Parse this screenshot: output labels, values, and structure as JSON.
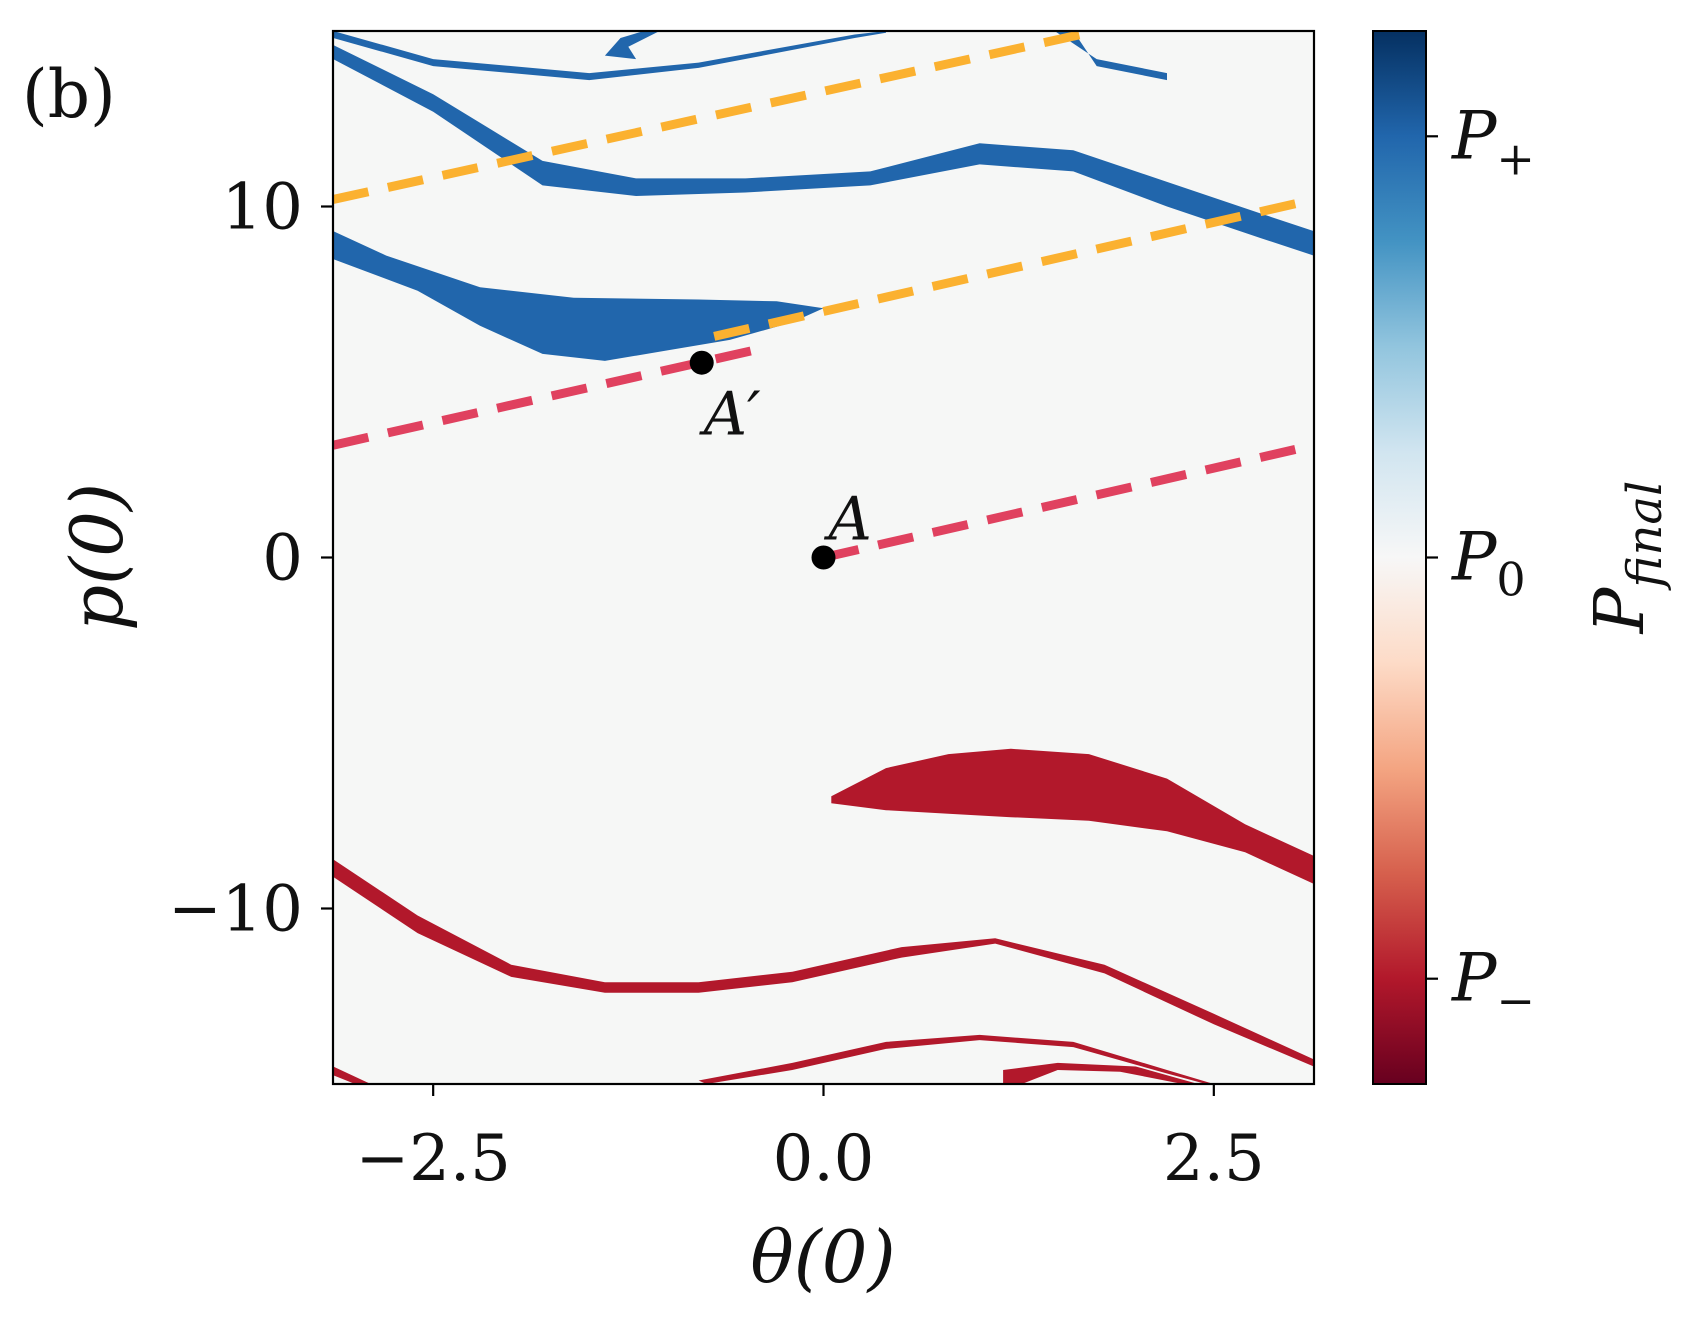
{
  "panel_label": "(b)",
  "chart_data": {
    "type": "heatmap",
    "xlabel": "θ(0)",
    "ylabel": "p(0)",
    "xlim": [
      -3.1416,
      3.1416
    ],
    "ylim": [
      -15,
      15
    ],
    "x_ticks": [
      {
        "value": -2.5,
        "label": "−2.5"
      },
      {
        "value": 0.0,
        "label": "0.0"
      },
      {
        "value": 2.5,
        "label": "2.5"
      }
    ],
    "y_ticks": [
      {
        "value": 10,
        "label": "10"
      },
      {
        "value": 0,
        "label": "0"
      },
      {
        "value": -10,
        "label": "−10"
      }
    ],
    "colorbar": {
      "title": "P_final",
      "colormap": "RdBu",
      "ticks": [
        {
          "label": "P+",
          "base": "P",
          "sub": "+",
          "level": 0.9
        },
        {
          "label": "P0",
          "base": "P",
          "sub": "0",
          "level": 0.5
        },
        {
          "label": "P−",
          "base": "P",
          "sub": "−",
          "level": 0.1
        }
      ]
    },
    "regions": [
      {
        "name": "blue-upper-thin-band",
        "class": "P+",
        "color": "#2166ac",
        "top": [
          [
            -3.14,
            14.6
          ],
          [
            -2.5,
            13.2
          ],
          [
            -1.8,
            11.3
          ],
          [
            -1.2,
            10.8
          ],
          [
            -0.5,
            10.8
          ],
          [
            0.3,
            11.0
          ],
          [
            1.0,
            11.8
          ],
          [
            1.6,
            11.6
          ],
          [
            2.2,
            10.7
          ],
          [
            2.8,
            9.8
          ],
          [
            3.14,
            9.3
          ]
        ],
        "bottom": [
          [
            3.14,
            8.6
          ],
          [
            2.8,
            9.1
          ],
          [
            2.2,
            10.0
          ],
          [
            1.6,
            11.0
          ],
          [
            1.0,
            11.2
          ],
          [
            0.3,
            10.6
          ],
          [
            -0.5,
            10.4
          ],
          [
            -1.2,
            10.3
          ],
          [
            -1.8,
            10.6
          ],
          [
            -2.5,
            12.7
          ],
          [
            -3.14,
            14.2
          ]
        ]
      },
      {
        "name": "blue-upper-thin-band-2",
        "class": "P+",
        "color": "#2166ac",
        "top": [
          [
            -3.14,
            15.0
          ],
          [
            -2.5,
            14.2
          ],
          [
            -1.5,
            13.8
          ],
          [
            -0.8,
            14.1
          ],
          [
            0.2,
            14.9
          ],
          [
            0.4,
            15.0
          ]
        ],
        "bottom": [
          [
            0.4,
            14.95
          ],
          [
            0.2,
            14.8
          ],
          [
            -0.8,
            13.95
          ],
          [
            -1.5,
            13.6
          ],
          [
            -2.5,
            14.0
          ],
          [
            -3.14,
            14.8
          ]
        ]
      },
      {
        "name": "blue-upper-corner-band",
        "class": "P+",
        "color": "#2166ac",
        "top": [
          [
            1.48,
            15.0
          ],
          [
            1.75,
            14.2
          ],
          [
            2.2,
            13.8
          ]
        ],
        "bottom": [
          [
            2.2,
            13.6
          ],
          [
            1.75,
            14.0
          ],
          [
            1.6,
            15.0
          ]
        ]
      },
      {
        "name": "blue-upper-corner-loop",
        "class": "P+",
        "color": "#2166ac",
        "top": [
          [
            -1.15,
            15.0
          ],
          [
            -1.3,
            14.8
          ],
          [
            -1.4,
            14.3
          ],
          [
            -1.2,
            14.2
          ]
        ],
        "bottom": [
          [
            -1.2,
            14.2
          ],
          [
            -1.25,
            14.55
          ],
          [
            -1.05,
            15.0
          ]
        ]
      },
      {
        "name": "blue-tongue",
        "class": "P+",
        "color": "#2166ac",
        "top": [
          [
            -3.14,
            9.3
          ],
          [
            -2.8,
            8.6
          ],
          [
            -2.2,
            7.7
          ],
          [
            -1.6,
            7.4
          ],
          [
            -0.8,
            7.35
          ],
          [
            -0.3,
            7.3
          ],
          [
            0.0,
            7.1
          ],
          [
            -0.2,
            6.7
          ]
        ],
        "bottom": [
          [
            -0.2,
            6.7
          ],
          [
            -0.6,
            6.2
          ],
          [
            -1.0,
            5.9
          ],
          [
            -1.4,
            5.6
          ],
          [
            -1.8,
            5.8
          ],
          [
            -2.2,
            6.6
          ],
          [
            -2.6,
            7.6
          ],
          [
            -3.14,
            8.5
          ]
        ]
      },
      {
        "name": "red-tongue",
        "class": "P−",
        "color": "#b2182b",
        "top": [
          [
            0.05,
            -6.8
          ],
          [
            0.4,
            -6.0
          ],
          [
            0.8,
            -5.6
          ],
          [
            1.2,
            -5.45
          ],
          [
            1.7,
            -5.6
          ],
          [
            2.2,
            -6.3
          ],
          [
            2.7,
            -7.6
          ],
          [
            3.14,
            -8.5
          ]
        ],
        "bottom": [
          [
            3.14,
            -9.3
          ],
          [
            2.7,
            -8.4
          ],
          [
            2.2,
            -7.8
          ],
          [
            1.7,
            -7.5
          ],
          [
            1.2,
            -7.4
          ],
          [
            0.8,
            -7.3
          ],
          [
            0.4,
            -7.2
          ],
          [
            0.05,
            -7.0
          ]
        ]
      },
      {
        "name": "red-lower-band",
        "class": "P−",
        "color": "#b2182b",
        "top": [
          [
            -3.14,
            -8.6
          ],
          [
            -2.6,
            -10.2
          ],
          [
            -2.0,
            -11.6
          ],
          [
            -1.4,
            -12.1
          ],
          [
            -0.8,
            -12.1
          ],
          [
            -0.2,
            -11.8
          ],
          [
            0.5,
            -11.1
          ],
          [
            1.1,
            -10.85
          ],
          [
            1.8,
            -11.6
          ],
          [
            2.5,
            -13.0
          ],
          [
            3.14,
            -14.3
          ]
        ],
        "bottom": [
          [
            3.14,
            -14.5
          ],
          [
            2.5,
            -13.3
          ],
          [
            1.8,
            -11.85
          ],
          [
            1.1,
            -11.0
          ],
          [
            0.5,
            -11.4
          ],
          [
            -0.2,
            -12.1
          ],
          [
            -0.8,
            -12.4
          ],
          [
            -1.4,
            -12.4
          ],
          [
            -2.0,
            -11.95
          ],
          [
            -2.6,
            -10.7
          ],
          [
            -3.14,
            -9.1
          ]
        ]
      },
      {
        "name": "red-lower-thin-band",
        "class": "P−",
        "color": "#b2182b",
        "top": [
          [
            -0.8,
            -14.9
          ],
          [
            -0.2,
            -14.4
          ],
          [
            0.4,
            -13.8
          ],
          [
            1.0,
            -13.6
          ],
          [
            1.6,
            -13.8
          ],
          [
            2.2,
            -14.6
          ],
          [
            2.5,
            -15.0
          ]
        ],
        "bottom": [
          [
            2.45,
            -15.0
          ],
          [
            2.2,
            -14.7
          ],
          [
            1.6,
            -13.95
          ],
          [
            1.0,
            -13.75
          ],
          [
            0.4,
            -14.0
          ],
          [
            -0.2,
            -14.6
          ],
          [
            -0.75,
            -15.0
          ]
        ]
      },
      {
        "name": "red-lower-loop",
        "class": "P−",
        "color": "#b2182b",
        "top": [
          [
            1.15,
            -15.0
          ],
          [
            1.15,
            -14.6
          ],
          [
            1.5,
            -14.4
          ],
          [
            2.0,
            -14.5
          ],
          [
            2.4,
            -15.0
          ]
        ],
        "bottom": [
          [
            2.3,
            -15.0
          ],
          [
            1.9,
            -14.65
          ],
          [
            1.5,
            -14.6
          ],
          [
            1.27,
            -15.0
          ]
        ]
      },
      {
        "name": "red-lower-corner",
        "class": "P−",
        "color": "#b2182b",
        "top": [
          [
            -3.14,
            -14.5
          ],
          [
            -2.9,
            -15.0
          ]
        ],
        "bottom": [
          [
            -3.0,
            -15.0
          ],
          [
            -3.14,
            -14.75
          ]
        ]
      }
    ],
    "lines": [
      {
        "name": "red-dashed-line-A",
        "color": "#e0415f",
        "points": [
          [
            0.0,
            0.0
          ],
          [
            3.14,
            3.2
          ]
        ]
      },
      {
        "name": "red-dashed-line-A-prime",
        "color": "#e0415f",
        "points": [
          [
            -3.14,
            3.2
          ],
          [
            -0.35,
            6.0
          ]
        ]
      },
      {
        "name": "orange-dashed-line-1",
        "color": "#fbb130",
        "points": [
          [
            -0.7,
            6.3
          ],
          [
            3.14,
            10.2
          ]
        ]
      },
      {
        "name": "orange-dashed-line-2",
        "color": "#fbb130",
        "points": [
          [
            -3.14,
            10.2
          ],
          [
            1.75,
            15.0
          ]
        ]
      }
    ],
    "points": [
      {
        "name": "point-A",
        "label": "A",
        "x": 0.0,
        "y": 0.0
      },
      {
        "name": "point-A-prime",
        "label": "A′",
        "x": -0.78,
        "y": 5.55
      }
    ]
  }
}
